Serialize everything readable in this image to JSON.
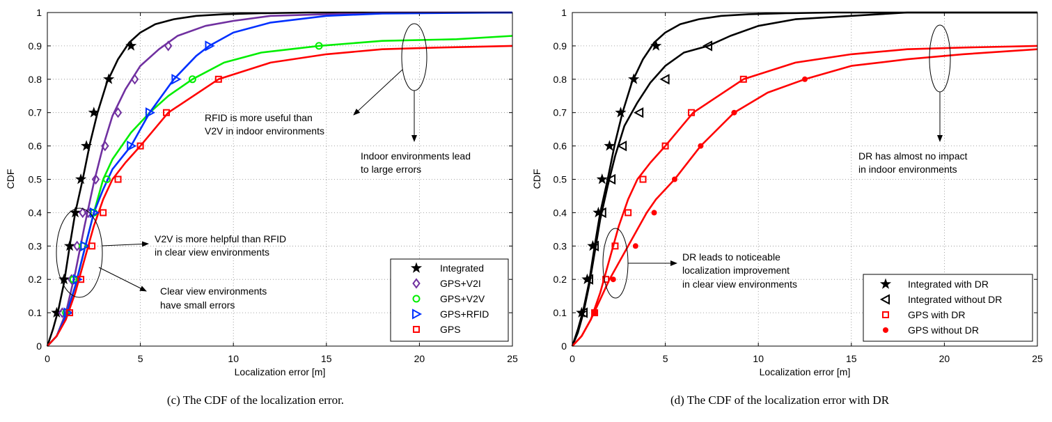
{
  "chart_data": [
    {
      "type": "line",
      "caption": "(c) The CDF of the localization error.",
      "xlabel": "Localization error [m]",
      "ylabel": "CDF",
      "xlim": [
        0,
        25
      ],
      "ylim": [
        0,
        1
      ],
      "xticks": [
        "0",
        "5",
        "10",
        "15",
        "20",
        "25"
      ],
      "yticks": [
        "0",
        "0.1",
        "0.2",
        "0.3",
        "0.4",
        "0.5",
        "0.6",
        "0.7",
        "0.8",
        "0.9",
        "1"
      ],
      "grid": true,
      "legend_position": "bottom-right",
      "series": [
        {
          "name": "Integrated",
          "color": "#000000",
          "marker": "star",
          "x": [
            0,
            0.3,
            0.6,
            0.9,
            1.2,
            1.5,
            1.9,
            2.3,
            2.7,
            3.2,
            3.8,
            4.4,
            5.0,
            5.8,
            6.8,
            8.0,
            9.5,
            11.5,
            14.0,
            17.0,
            20.0,
            25.0
          ],
          "y": [
            0,
            0.05,
            0.11,
            0.19,
            0.3,
            0.4,
            0.5,
            0.61,
            0.7,
            0.79,
            0.86,
            0.91,
            0.94,
            0.965,
            0.98,
            0.99,
            0.995,
            0.998,
            1.0,
            1.0,
            1.0,
            1.0
          ],
          "markers_x": [
            0.5,
            0.9,
            1.2,
            1.5,
            1.8,
            2.1,
            2.5,
            3.3,
            4.5
          ],
          "markers_y": [
            0.1,
            0.2,
            0.3,
            0.4,
            0.5,
            0.6,
            0.7,
            0.8,
            0.9
          ]
        },
        {
          "name": "GPS+V2I",
          "color": "#7030a0",
          "marker": "diamond",
          "x": [
            0,
            0.5,
            1.0,
            1.5,
            2.0,
            2.5,
            3.0,
            3.5,
            4.2,
            5.0,
            6.0,
            7.0,
            8.5,
            10.0,
            12.0,
            15.0,
            18.0,
            25.0
          ],
          "y": [
            0,
            0.03,
            0.1,
            0.22,
            0.36,
            0.49,
            0.6,
            0.69,
            0.77,
            0.84,
            0.89,
            0.93,
            0.96,
            0.975,
            0.99,
            0.995,
            1.0,
            1.0
          ],
          "markers_x": [
            0.8,
            1.3,
            1.6,
            1.9,
            2.2,
            2.6,
            3.1,
            3.8,
            4.7,
            6.5
          ],
          "markers_y": [
            0.1,
            0.2,
            0.3,
            0.4,
            0.4,
            0.5,
            0.6,
            0.7,
            0.8,
            0.9
          ]
        },
        {
          "name": "GPS+V2V",
          "color": "#00ee00",
          "marker": "circle",
          "x": [
            0,
            0.5,
            1.0,
            1.5,
            2.0,
            2.5,
            3.0,
            3.5,
            4.5,
            5.5,
            6.5,
            7.8,
            9.5,
            11.5,
            14.6,
            18.0,
            22.0,
            25.0
          ],
          "y": [
            0,
            0.03,
            0.09,
            0.18,
            0.29,
            0.4,
            0.5,
            0.56,
            0.64,
            0.7,
            0.75,
            0.8,
            0.85,
            0.88,
            0.9,
            0.915,
            0.92,
            0.93
          ],
          "markers_x": [
            1.0,
            1.4,
            1.9,
            2.5,
            3.2,
            7.8,
            14.6
          ],
          "markers_y": [
            0.1,
            0.2,
            0.3,
            0.4,
            0.5,
            0.8,
            0.9
          ]
        },
        {
          "name": "GPS+RFID",
          "color": "#0030ff",
          "marker": "triangle-right",
          "x": [
            0,
            0.5,
            1.0,
            1.5,
            2.0,
            2.5,
            3.0,
            3.5,
            4.5,
            5.5,
            6.8,
            8.0,
            8.7,
            10.0,
            12.0,
            15.0,
            18.0,
            25.0
          ],
          "y": [
            0,
            0.03,
            0.09,
            0.18,
            0.29,
            0.4,
            0.47,
            0.53,
            0.6,
            0.7,
            0.8,
            0.87,
            0.9,
            0.94,
            0.97,
            0.99,
            0.997,
            1.0
          ],
          "markers_x": [
            1.1,
            1.6,
            2.0,
            2.5,
            4.5,
            5.5,
            6.9,
            8.7
          ],
          "markers_y": [
            0.1,
            0.2,
            0.3,
            0.4,
            0.6,
            0.7,
            0.8,
            0.9
          ]
        },
        {
          "name": "GPS",
          "color": "#ff0000",
          "marker": "square",
          "x": [
            0,
            0.5,
            1.0,
            1.5,
            2.0,
            2.5,
            3.0,
            3.5,
            4.2,
            5.0,
            6.5,
            9.2,
            12.0,
            15.0,
            18.0,
            21.0,
            25.0
          ],
          "y": [
            0,
            0.03,
            0.08,
            0.16,
            0.26,
            0.36,
            0.44,
            0.5,
            0.55,
            0.6,
            0.7,
            0.8,
            0.85,
            0.875,
            0.89,
            0.895,
            0.9
          ],
          "markers_x": [
            1.2,
            1.8,
            2.4,
            3.0,
            3.8,
            5.0,
            6.4,
            9.2
          ],
          "markers_y": [
            0.1,
            0.2,
            0.3,
            0.4,
            0.5,
            0.6,
            0.7,
            0.8
          ]
        }
      ],
      "annotations": [
        "RFID is more useful than",
        "V2V in indoor environments",
        "Indoor environments lead",
        "to large errors",
        "V2V is more helpful than RFID",
        "in clear view environments",
        "Clear view environments",
        "have small errors"
      ]
    },
    {
      "type": "line",
      "caption": "(d) The CDF of the localization error with DR",
      "xlabel": "Localization error [m]",
      "ylabel": "CDF",
      "xlim": [
        0,
        25
      ],
      "ylim": [
        0,
        1
      ],
      "xticks": [
        "0",
        "5",
        "10",
        "15",
        "20",
        "25"
      ],
      "yticks": [
        "0",
        "0.1",
        "0.2",
        "0.3",
        "0.4",
        "0.5",
        "0.6",
        "0.7",
        "0.8",
        "0.9",
        "1"
      ],
      "grid": true,
      "legend_position": "bottom-right",
      "series": [
        {
          "name": "Integrated with DR",
          "color": "#000000",
          "marker": "star",
          "x": [
            0,
            0.3,
            0.6,
            0.9,
            1.2,
            1.5,
            1.9,
            2.3,
            2.7,
            3.2,
            3.8,
            4.4,
            5.0,
            5.8,
            6.8,
            8.0,
            9.5,
            11.5,
            14.0,
            17.0,
            20.0,
            25.0
          ],
          "y": [
            0,
            0.05,
            0.11,
            0.19,
            0.3,
            0.4,
            0.5,
            0.61,
            0.7,
            0.79,
            0.86,
            0.91,
            0.94,
            0.965,
            0.98,
            0.99,
            0.995,
            0.998,
            1.0,
            1.0,
            1.0,
            1.0
          ],
          "markers_x": [
            0.5,
            0.8,
            1.1,
            1.4,
            1.6,
            2.0,
            2.6,
            3.3,
            4.5
          ],
          "markers_y": [
            0.1,
            0.2,
            0.3,
            0.4,
            0.5,
            0.6,
            0.7,
            0.8,
            0.9
          ]
        },
        {
          "name": "Integrated without DR",
          "color": "#000000",
          "marker": "triangle-left",
          "x": [
            0,
            0.3,
            0.6,
            0.9,
            1.2,
            1.5,
            1.9,
            2.3,
            2.8,
            3.5,
            4.2,
            5.0,
            6.0,
            7.3,
            8.5,
            10.0,
            12.0,
            15.0,
            18.0,
            25.0
          ],
          "y": [
            0,
            0.04,
            0.1,
            0.18,
            0.28,
            0.38,
            0.48,
            0.57,
            0.66,
            0.73,
            0.79,
            0.84,
            0.88,
            0.9,
            0.93,
            0.96,
            0.98,
            0.99,
            1.0,
            1.0
          ],
          "markers_x": [
            0.6,
            0.9,
            1.2,
            1.6,
            2.1,
            2.7,
            3.6,
            5.0,
            7.3
          ],
          "markers_y": [
            0.1,
            0.2,
            0.3,
            0.4,
            0.5,
            0.6,
            0.7,
            0.8,
            0.9
          ]
        },
        {
          "name": "GPS with DR",
          "color": "#ff0000",
          "marker": "square",
          "x": [
            0,
            0.5,
            1.0,
            1.5,
            2.0,
            2.5,
            3.0,
            3.5,
            4.2,
            5.0,
            6.5,
            9.2,
            12.0,
            15.0,
            18.0,
            21.0,
            25.0
          ],
          "y": [
            0,
            0.03,
            0.08,
            0.16,
            0.26,
            0.36,
            0.44,
            0.5,
            0.55,
            0.6,
            0.7,
            0.8,
            0.85,
            0.875,
            0.89,
            0.895,
            0.9
          ],
          "markers_x": [
            1.2,
            1.8,
            2.3,
            3.0,
            3.8,
            5.0,
            6.4,
            9.2
          ],
          "markers_y": [
            0.1,
            0.2,
            0.3,
            0.4,
            0.5,
            0.6,
            0.7,
            0.8
          ]
        },
        {
          "name": "GPS without DR",
          "color": "#ff0000",
          "marker": "dot",
          "x": [
            0,
            0.5,
            1.0,
            1.5,
            2.0,
            2.5,
            3.0,
            3.5,
            4.0,
            4.5,
            5.5,
            6.9,
            8.7,
            10.5,
            12.5,
            15.0,
            18.0,
            21.0,
            25.0
          ],
          "y": [
            0,
            0.03,
            0.08,
            0.14,
            0.2,
            0.25,
            0.3,
            0.35,
            0.4,
            0.44,
            0.5,
            0.6,
            0.7,
            0.76,
            0.8,
            0.84,
            0.86,
            0.875,
            0.89
          ],
          "markers_x": [
            1.2,
            2.2,
            3.4,
            4.4,
            5.5,
            6.9,
            8.7,
            12.5
          ],
          "markers_y": [
            0.1,
            0.2,
            0.3,
            0.4,
            0.5,
            0.6,
            0.7,
            0.8
          ]
        }
      ],
      "annotations": [
        "DR leads to noticeable",
        "localization improvement",
        "in clear view environments",
        "DR has almost no impact",
        "in indoor environments"
      ]
    }
  ]
}
